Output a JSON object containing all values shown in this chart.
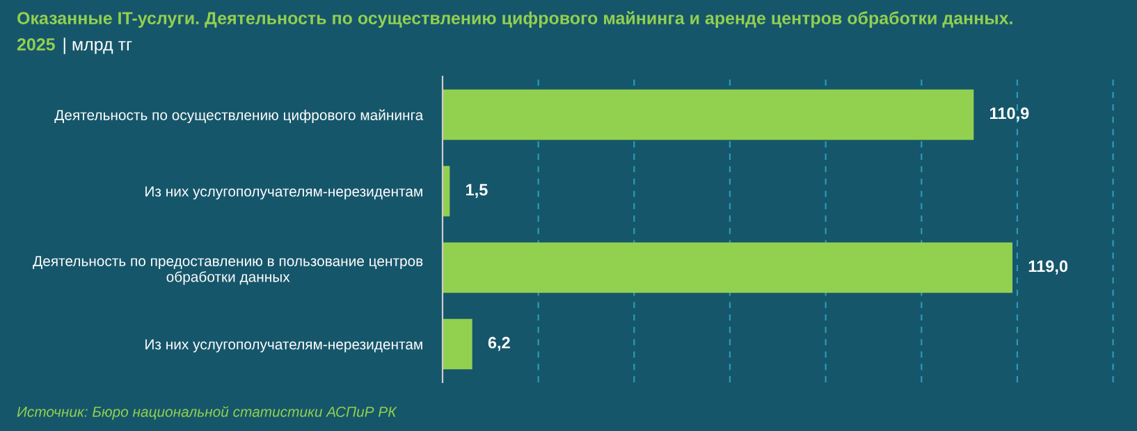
{
  "chart_data": {
    "type": "bar",
    "orientation": "horizontal",
    "title": "Оказанные IT-услуги. Деятельность по осуществлению цифрового майнинга и аренде центров обработки данных.",
    "subtitle": "2025",
    "annotations": [
      "| млрд тг",
      "Источник: Бюро национальной статистики АСПиР РК"
    ],
    "categories": [
      "Деятельность по осуществлению цифрового майнинга",
      "Из них услугополучателям-нерезидентам",
      "Деятельность по предоставлению в пользование центров\nобработки данных",
      "Из них услугополучателям-нерезидентам"
    ],
    "values": [
      110.9,
      1.5,
      119.0,
      6.2
    ],
    "value_labels": [
      "110,9",
      "1,5",
      "119,0",
      "6,2"
    ],
    "color": "#92d050",
    "xlim": [
      0,
      145
    ],
    "xticks": [
      {
        "value": 20,
        "label": null
      },
      {
        "value": 40,
        "label": null
      },
      {
        "value": 60,
        "label": null
      },
      {
        "value": 80,
        "label": null
      },
      {
        "value": 100,
        "label": null
      },
      {
        "value": 120,
        "label": null
      },
      {
        "value": 140,
        "label": null
      }
    ],
    "grid": "x",
    "tick_labels": "y",
    "legend": false
  }
}
